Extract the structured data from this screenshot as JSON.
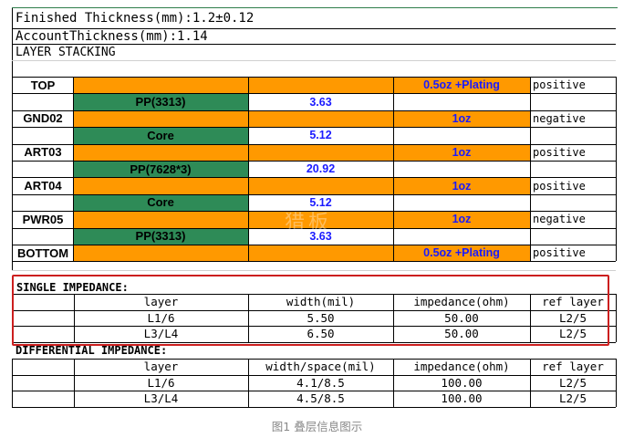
{
  "header": {
    "finished_thickness": "Finished Thickness(mm):1.2±0.12",
    "account_thickness": "AccountThickness(mm):1.14",
    "layer_stacking": "LAYER STACKING"
  },
  "stack": {
    "rows": [
      {
        "layer": "TOP",
        "copper": "0.5oz +Plating",
        "polarity": "positive"
      },
      {
        "dielectric": "PP(3313)",
        "thickness": "3.63"
      },
      {
        "layer": "GND02",
        "copper": "1oz",
        "polarity": "negative"
      },
      {
        "dielectric": "Core",
        "thickness": "5.12"
      },
      {
        "layer": "ART03",
        "copper": "1oz",
        "polarity": "positive"
      },
      {
        "dielectric": "PP(7628*3)",
        "thickness": "20.92"
      },
      {
        "layer": "ART04",
        "copper": "1oz",
        "polarity": "positive"
      },
      {
        "dielectric": "Core",
        "thickness": "5.12"
      },
      {
        "layer": "PWR05",
        "copper": "1oz",
        "polarity": "negative"
      },
      {
        "dielectric": "PP(3313)",
        "thickness": "3.63"
      },
      {
        "layer": "BOTTOM",
        "copper": "0.5oz +Plating",
        "polarity": "positive"
      }
    ]
  },
  "single": {
    "title": "SINGLE   IMPEDANCE:",
    "headers": [
      "layer",
      "width(mil)",
      "impedance(ohm)",
      "ref layer"
    ],
    "rows": [
      [
        "L1/6",
        "5.50",
        "50.00",
        "L2/5"
      ],
      [
        "L3/L4",
        "6.50",
        "50.00",
        "L2/5"
      ]
    ]
  },
  "differential": {
    "title": "DIFFERENTIAL  IMPEDANCE:",
    "headers": [
      "layer",
      "width/space(mil)",
      "impedance(ohm)",
      "ref layer"
    ],
    "rows": [
      [
        "L1/6",
        "4.1/8.5",
        "100.00",
        "L2/5"
      ],
      [
        "L3/L4",
        "4.5/8.5",
        "100.00",
        "L2/5"
      ]
    ]
  },
  "watermark": "猎板",
  "caption": "图1 叠层信息图示",
  "colors": {
    "copper_fill": "#ff9900",
    "dielectric_fill": "#2e8b57",
    "thickness_text": "#1a1aff",
    "highlight_box": "#cc1f1f"
  }
}
